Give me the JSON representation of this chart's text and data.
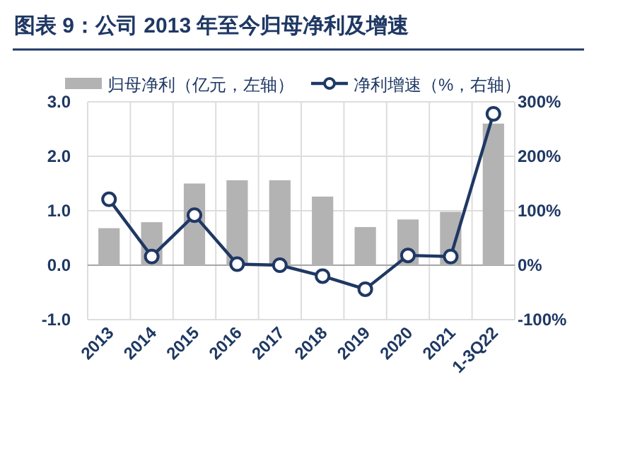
{
  "chart_data": {
    "type": "bar",
    "title": "图表 9：公司 2013 年至今归母净利及增速",
    "categories": [
      "2013",
      "2014",
      "2015",
      "2016",
      "2017",
      "2018",
      "2019",
      "2020",
      "2021",
      "1-3Q22"
    ],
    "series": [
      {
        "name": "归母净利（亿元，左轴）",
        "color": "#b3b3b3",
        "values": [
          0.68,
          0.79,
          1.5,
          1.56,
          1.56,
          1.26,
          0.7,
          0.84,
          0.98,
          2.6
        ]
      },
      {
        "name": "净利增速（%，右轴）",
        "type": "line",
        "axis": "y2",
        "color": "#1f3864",
        "marker": "circle",
        "values": [
          121,
          16,
          92,
          2,
          0,
          -20,
          -44,
          18,
          16,
          278
        ]
      }
    ],
    "ylim": [
      -1,
      3
    ],
    "yticks": [
      {
        "value": -1,
        "label": "-1.0"
      },
      {
        "value": 0,
        "label": "0.0"
      },
      {
        "value": 1,
        "label": "1.0"
      },
      {
        "value": 2,
        "label": "2.0"
      },
      {
        "value": 3,
        "label": "3.0"
      }
    ],
    "y2lim": [
      -100,
      300
    ],
    "y2ticks": [
      {
        "value": -100,
        "label": "-100%"
      },
      {
        "value": 0,
        "label": "0%"
      },
      {
        "value": 100,
        "label": "100%"
      },
      {
        "value": 200,
        "label": "200%"
      },
      {
        "value": 300,
        "label": "300%"
      }
    ],
    "grid": true,
    "legend": "top"
  }
}
